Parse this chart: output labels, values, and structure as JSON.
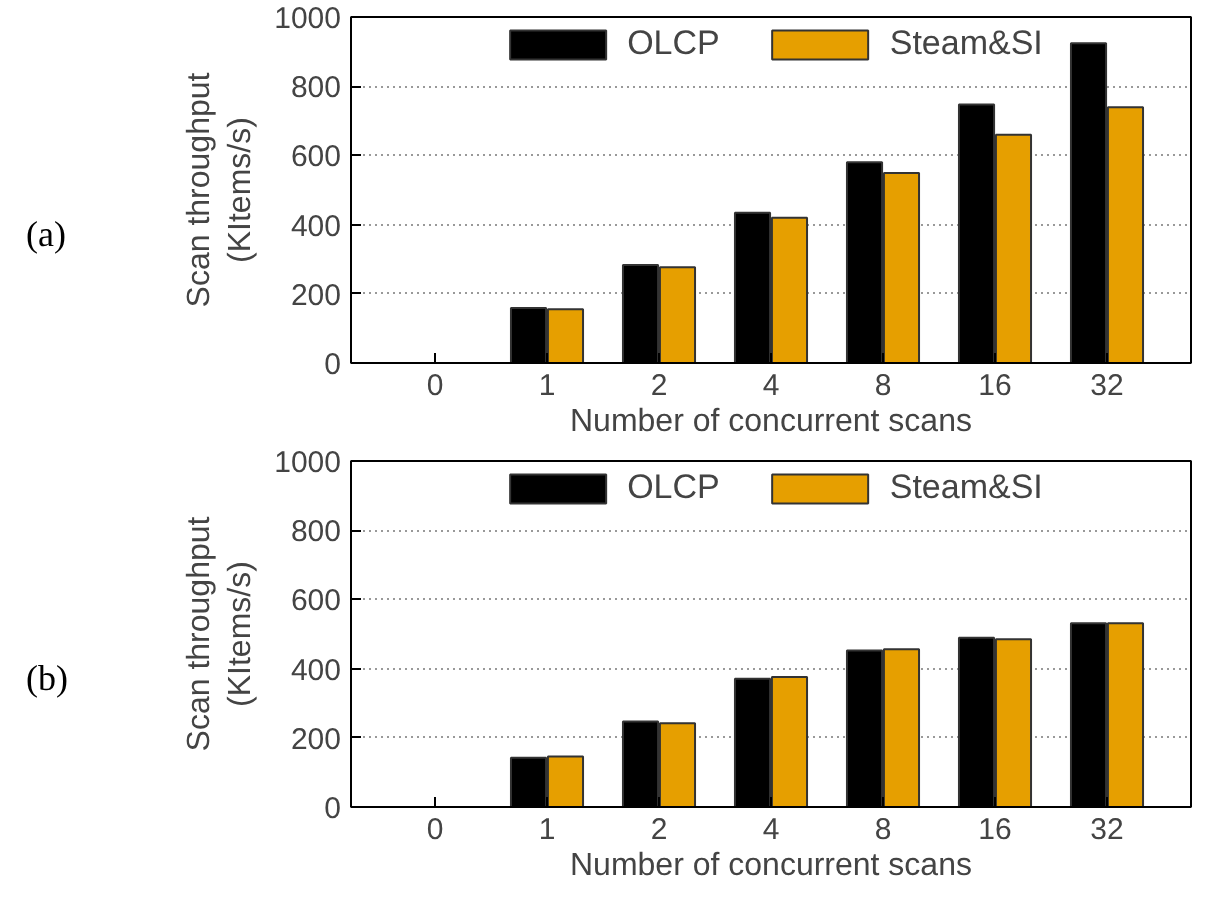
{
  "chart_data": [
    {
      "type": "bar",
      "categories": [
        "0",
        "1",
        "2",
        "4",
        "8",
        "16",
        "32"
      ],
      "xlabel": "Number of concurrent scans",
      "ylabel": "Scan throughput\n(KItems/s)",
      "ylim": [
        0,
        1000
      ],
      "yticks": [
        0,
        200,
        400,
        600,
        800,
        1000
      ],
      "grid": "y",
      "legend": "top",
      "annotations": [
        "(a)"
      ],
      "series": [
        {
          "name": "OLCP",
          "color": "#000000",
          "values": [
            null,
            159,
            283,
            434,
            580,
            747,
            924
          ]
        },
        {
          "name": "Steam&SI",
          "color": "#e69f00",
          "values": [
            null,
            155,
            277,
            420,
            549,
            660,
            739
          ]
        }
      ]
    },
    {
      "type": "bar",
      "categories": [
        "0",
        "1",
        "2",
        "4",
        "8",
        "16",
        "32"
      ],
      "xlabel": "Number of concurrent scans",
      "ylabel": "Scan throughput\n(KItems/s)",
      "ylim": [
        0,
        1000
      ],
      "yticks": [
        0,
        200,
        400,
        600,
        800,
        1000
      ],
      "grid": "y",
      "legend": "top",
      "annotations": [
        "(b)"
      ],
      "series": [
        {
          "name": "OLCP",
          "color": "#000000",
          "values": [
            null,
            142,
            247,
            371,
            452,
            489,
            531
          ]
        },
        {
          "name": "Steam&SI",
          "color": "#e69f00",
          "values": [
            null,
            146,
            242,
            376,
            456,
            485,
            531
          ]
        }
      ]
    }
  ]
}
